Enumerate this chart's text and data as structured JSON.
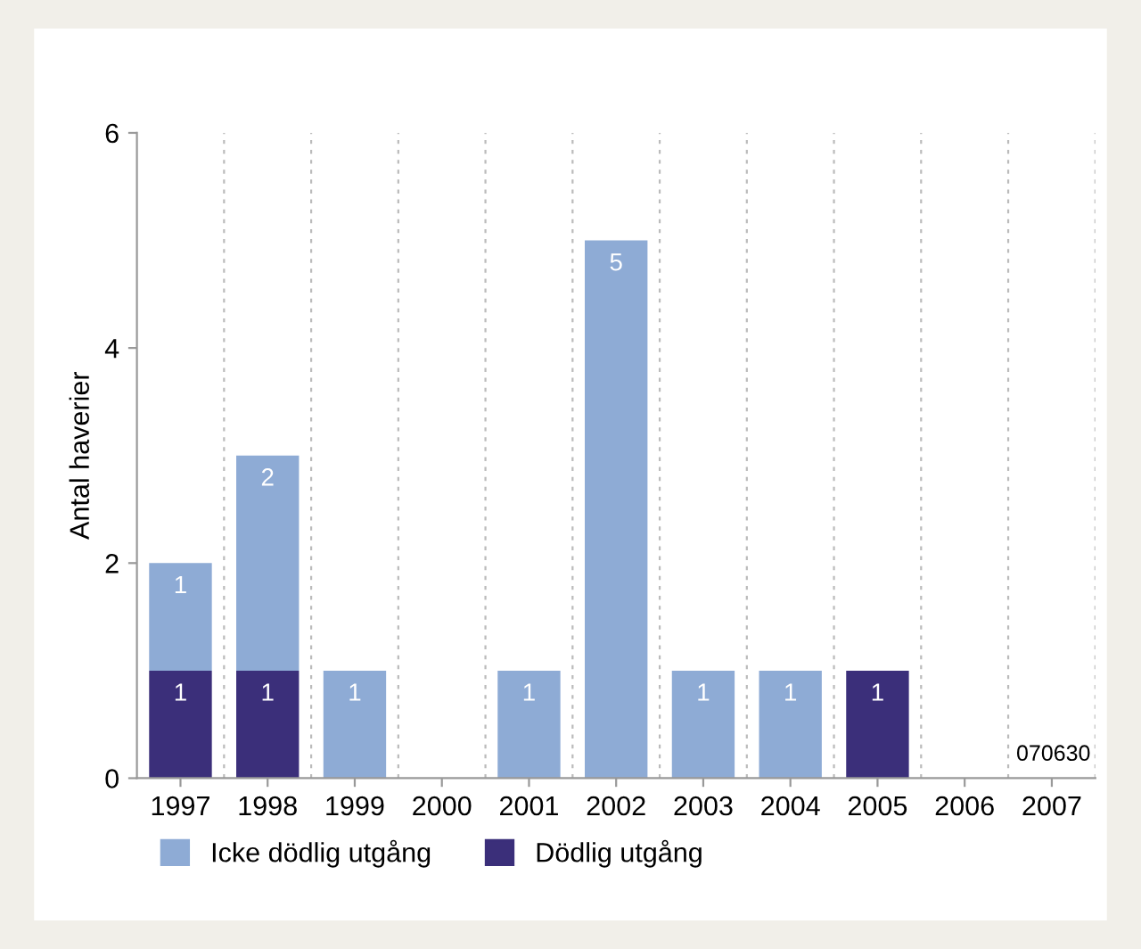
{
  "chart_data": {
    "type": "bar",
    "stacked": true,
    "ylabel": "Antal haverier",
    "categories": [
      "1997",
      "1998",
      "1999",
      "2000",
      "2001",
      "2002",
      "2003",
      "2004",
      "2005",
      "2006",
      "2007"
    ],
    "series": [
      {
        "name": "Dödlig utgång",
        "color": "#3b2f7a",
        "values": [
          1,
          1,
          0,
          0,
          0,
          0,
          0,
          0,
          1,
          0,
          0
        ],
        "value_labels": [
          "1",
          "1",
          null,
          null,
          null,
          null,
          null,
          null,
          "1",
          null,
          null
        ]
      },
      {
        "name": "Icke dödlig utgång",
        "color": "#8eabd5",
        "values": [
          1,
          2,
          1,
          0,
          1,
          5,
          1,
          1,
          0,
          0,
          0
        ],
        "value_labels": [
          "1",
          "2",
          "1",
          null,
          "1",
          "5",
          "1",
          "1",
          null,
          null,
          null
        ]
      }
    ],
    "ylim": [
      0,
      6
    ],
    "yticks": [
      0,
      2,
      4,
      6
    ],
    "grid": "x",
    "legend": "bottom left",
    "annotations": [
      "070630"
    ]
  }
}
